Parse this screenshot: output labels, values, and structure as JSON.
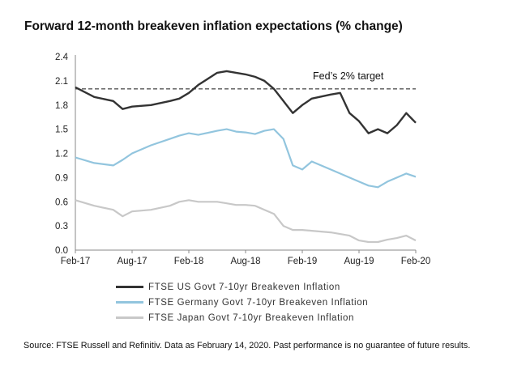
{
  "title": "Forward 12-month breakeven inflation expectations (% change)",
  "source": "Source: FTSE Russell and Refinitiv. Data as February 14, 2020. Past performance is no guarantee of future results.",
  "chart_data": {
    "type": "line",
    "x_ticks": [
      "Feb-17",
      "Aug-17",
      "Feb-18",
      "Aug-18",
      "Feb-19",
      "Aug-19",
      "Feb-20"
    ],
    "y_ticks": [
      "0.0",
      "0.3",
      "0.6",
      "0.9",
      "1.2",
      "1.5",
      "1.8",
      "2.1",
      "2.4"
    ],
    "ylim": [
      0,
      2.4
    ],
    "x_dates": [
      "2017-02",
      "2017-04",
      "2017-06",
      "2017-07",
      "2017-08",
      "2017-10",
      "2017-12",
      "2018-01",
      "2018-02",
      "2018-03",
      "2018-05",
      "2018-06",
      "2018-07",
      "2018-08",
      "2018-09",
      "2018-10",
      "2018-11",
      "2018-12",
      "2019-01",
      "2019-02",
      "2019-03",
      "2019-05",
      "2019-06",
      "2019-07",
      "2019-08",
      "2019-09",
      "2019-10",
      "2019-11",
      "2019-12",
      "2020-01",
      "2020-02"
    ],
    "series": [
      {
        "name": "FTSE US Govt 7-10yr Breakeven Inflation",
        "color": "#333333",
        "values": [
          2.02,
          1.9,
          1.85,
          1.75,
          1.78,
          1.8,
          1.85,
          1.88,
          1.95,
          2.05,
          2.2,
          2.22,
          2.2,
          2.18,
          2.15,
          2.1,
          2.0,
          1.85,
          1.7,
          1.8,
          1.88,
          1.93,
          1.95,
          1.7,
          1.6,
          1.45,
          1.5,
          1.45,
          1.55,
          1.7,
          1.58
        ]
      },
      {
        "name": "FTSE Germany Govt 7-10yr Breakeven Inflation",
        "color": "#92c5de",
        "values": [
          1.15,
          1.08,
          1.05,
          1.12,
          1.2,
          1.3,
          1.38,
          1.42,
          1.45,
          1.43,
          1.48,
          1.5,
          1.47,
          1.46,
          1.44,
          1.48,
          1.5,
          1.38,
          1.05,
          1.0,
          1.1,
          1.0,
          0.95,
          0.9,
          0.85,
          0.8,
          0.78,
          0.85,
          0.9,
          0.95,
          0.91
        ]
      },
      {
        "name": "FTSE Japan Govt 7-10yr Breakeven Inflation",
        "color": "#c8c8c8",
        "values": [
          0.62,
          0.55,
          0.5,
          0.42,
          0.48,
          0.5,
          0.55,
          0.6,
          0.62,
          0.6,
          0.6,
          0.58,
          0.56,
          0.56,
          0.55,
          0.5,
          0.45,
          0.3,
          0.25,
          0.25,
          0.24,
          0.22,
          0.2,
          0.18,
          0.12,
          0.1,
          0.1,
          0.13,
          0.15,
          0.18,
          0.12
        ]
      }
    ],
    "reference_line": {
      "value": 2.0,
      "label": "Fed’s 2% target",
      "style": "dashed"
    },
    "grid": false,
    "legend_position": "bottom"
  }
}
